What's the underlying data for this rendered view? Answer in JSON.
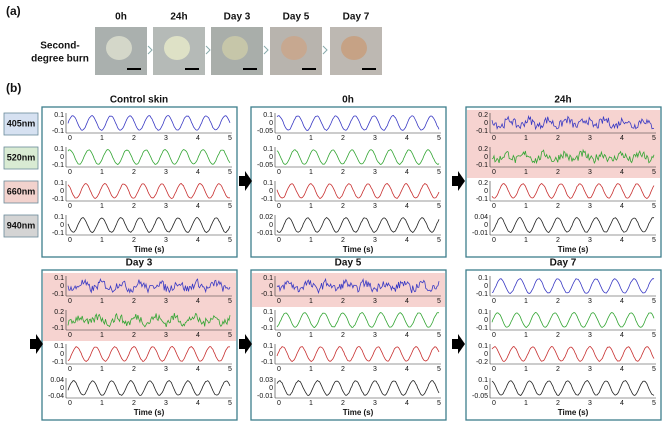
{
  "panel_a": {
    "label": "(a)",
    "row_label": [
      "Second-",
      "degree burn"
    ],
    "times": [
      "0h",
      "24h",
      "Day 3",
      "Day 5",
      "Day 7"
    ]
  },
  "panel_b": {
    "label": "(b)",
    "wavelengths": [
      "405nm",
      "520nm",
      "660nm",
      "940nm"
    ],
    "box_colors": [
      "#d6e1f1",
      "#d9ebd3",
      "#f2d2cd",
      "#d4d4d4"
    ],
    "line_colors": [
      "#3a3ac4",
      "#33a533",
      "#c83030",
      "#222222"
    ],
    "xticks": [
      "0",
      "1",
      "2",
      "3",
      "4",
      "5"
    ],
    "xlabel": "Time (s)",
    "plots": [
      {
        "title": "Control skin",
        "highlight": [
          false,
          false,
          false,
          false
        ],
        "yticks": [
          [
            "0.1",
            "0",
            "-0.1"
          ],
          [
            "0.1",
            "0",
            "-0.1"
          ],
          [
            "0.1",
            "0",
            "-0.1"
          ],
          [
            "0.1",
            "0",
            "-0.1"
          ]
        ]
      },
      {
        "title": "0h",
        "highlight": [
          false,
          false,
          false,
          false
        ],
        "yticks": [
          [
            "0.1",
            "0",
            "-0.05"
          ],
          [
            "0.1",
            "0",
            "-0.05"
          ],
          [
            "0.1",
            "0",
            "-0.1"
          ],
          [
            "0.02",
            "0",
            "-0.01"
          ]
        ]
      },
      {
        "title": "24h",
        "highlight": [
          true,
          true,
          false,
          false
        ],
        "yticks": [
          [
            "0.2",
            "0",
            "-0.1"
          ],
          [
            "0.2",
            "0",
            "-0.1"
          ],
          [
            "0.2",
            "0",
            "-0.1"
          ],
          [
            "0.04",
            "0",
            "-0.01"
          ]
        ]
      },
      {
        "title": "Day 3",
        "highlight": [
          true,
          true,
          false,
          false
        ],
        "yticks": [
          [
            "0.1",
            "0",
            "-0.1"
          ],
          [
            "0.2",
            "0",
            "-0.1"
          ],
          [
            "0.1",
            "0",
            "-0.1"
          ],
          [
            "0.04",
            "0",
            "-0.04"
          ]
        ]
      },
      {
        "title": "Day 5",
        "highlight": [
          true,
          false,
          false,
          false
        ],
        "yticks": [
          [
            "0.1",
            "0",
            "-0.1"
          ],
          [
            "0.1",
            "0",
            "-0.1"
          ],
          [
            "0.1",
            "0",
            "-0.1"
          ],
          [
            "0.03",
            "0",
            "-0.01"
          ]
        ]
      },
      {
        "title": "Day 7",
        "highlight": [
          false,
          false,
          false,
          false
        ],
        "yticks": [
          [
            "0.1",
            "0",
            "-0.1"
          ],
          [
            "0.1",
            "0",
            "-0.1"
          ],
          [
            "0.1",
            "0",
            "-0.2"
          ],
          [
            "0.1",
            "0",
            "-0.05"
          ]
        ]
      }
    ]
  }
}
